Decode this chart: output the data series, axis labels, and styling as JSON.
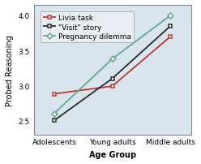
{
  "x_labels": [
    "Adolescents",
    "Young adults",
    "Middle adults"
  ],
  "x_positions": [
    0,
    1,
    2
  ],
  "series": [
    {
      "label": "Livia task",
      "values": [
        2.88,
        2.99,
        3.7
      ],
      "color": "#c0392b",
      "marker": "s",
      "linestyle": "-"
    },
    {
      "label": "\"Visit\" story",
      "values": [
        2.5,
        3.1,
        3.85
      ],
      "color": "#2b2b2b",
      "marker": "s",
      "linestyle": "-"
    },
    {
      "label": "Pregnancy dilemma",
      "values": [
        2.6,
        3.38,
        4.0
      ],
      "color": "#5dab8e",
      "marker": "D",
      "linestyle": "-"
    }
  ],
  "ylabel": "Probed Reasoning",
  "xlabel": "Age Group",
  "ylim": [
    2.3,
    4.15
  ],
  "yticks": [
    2.5,
    3.0,
    3.5,
    4.0
  ],
  "plot_bg_color": "#d8e4ee",
  "fig_bg_color": "#f0f0f0",
  "legend_loc": "upper left",
  "axis_fontsize": 7,
  "tick_fontsize": 6.5,
  "legend_fontsize": 6.5
}
